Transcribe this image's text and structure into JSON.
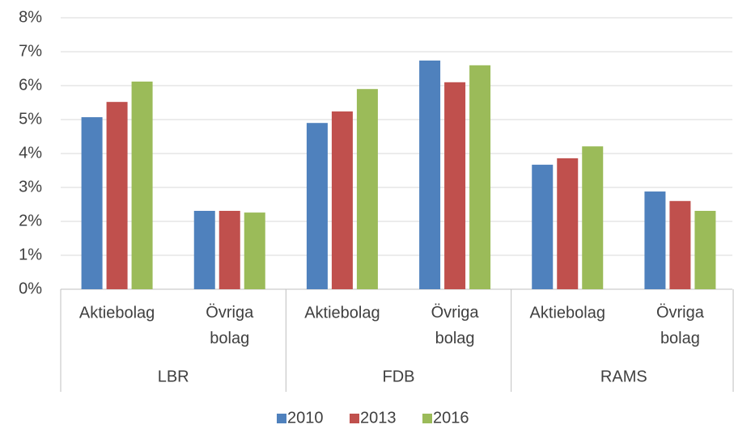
{
  "chart_data": {
    "type": "bar",
    "categories": [
      "Aktiebolag",
      "Övriga bolag",
      "Aktiebolag",
      "Övriga bolag",
      "Aktiebolag",
      "Övriga bolag"
    ],
    "group_labels": [
      "LBR",
      "FDB",
      "RAMS"
    ],
    "series": [
      {
        "name": "2010",
        "color": "#4f81bd",
        "values": [
          5.07,
          2.31,
          4.9,
          6.74,
          3.67,
          2.88
        ]
      },
      {
        "name": "2013",
        "color": "#c0504d",
        "values": [
          5.52,
          2.31,
          5.24,
          6.1,
          3.86,
          2.6
        ]
      },
      {
        "name": "2016",
        "color": "#9bbb59",
        "values": [
          6.12,
          2.26,
          5.9,
          6.6,
          4.21,
          2.31
        ]
      }
    ],
    "ylim": [
      0,
      8
    ],
    "yticks": [
      {
        "value": 0,
        "label": "0%"
      },
      {
        "value": 1,
        "label": "1%"
      },
      {
        "value": 2,
        "label": "2%"
      },
      {
        "value": 3,
        "label": "3%"
      },
      {
        "value": 4,
        "label": "4%"
      },
      {
        "value": 5,
        "label": "5%"
      },
      {
        "value": 6,
        "label": "6%"
      },
      {
        "value": 7,
        "label": "7%"
      },
      {
        "value": 8,
        "label": "8%"
      }
    ],
    "grid": true,
    "legend": "bottom"
  }
}
